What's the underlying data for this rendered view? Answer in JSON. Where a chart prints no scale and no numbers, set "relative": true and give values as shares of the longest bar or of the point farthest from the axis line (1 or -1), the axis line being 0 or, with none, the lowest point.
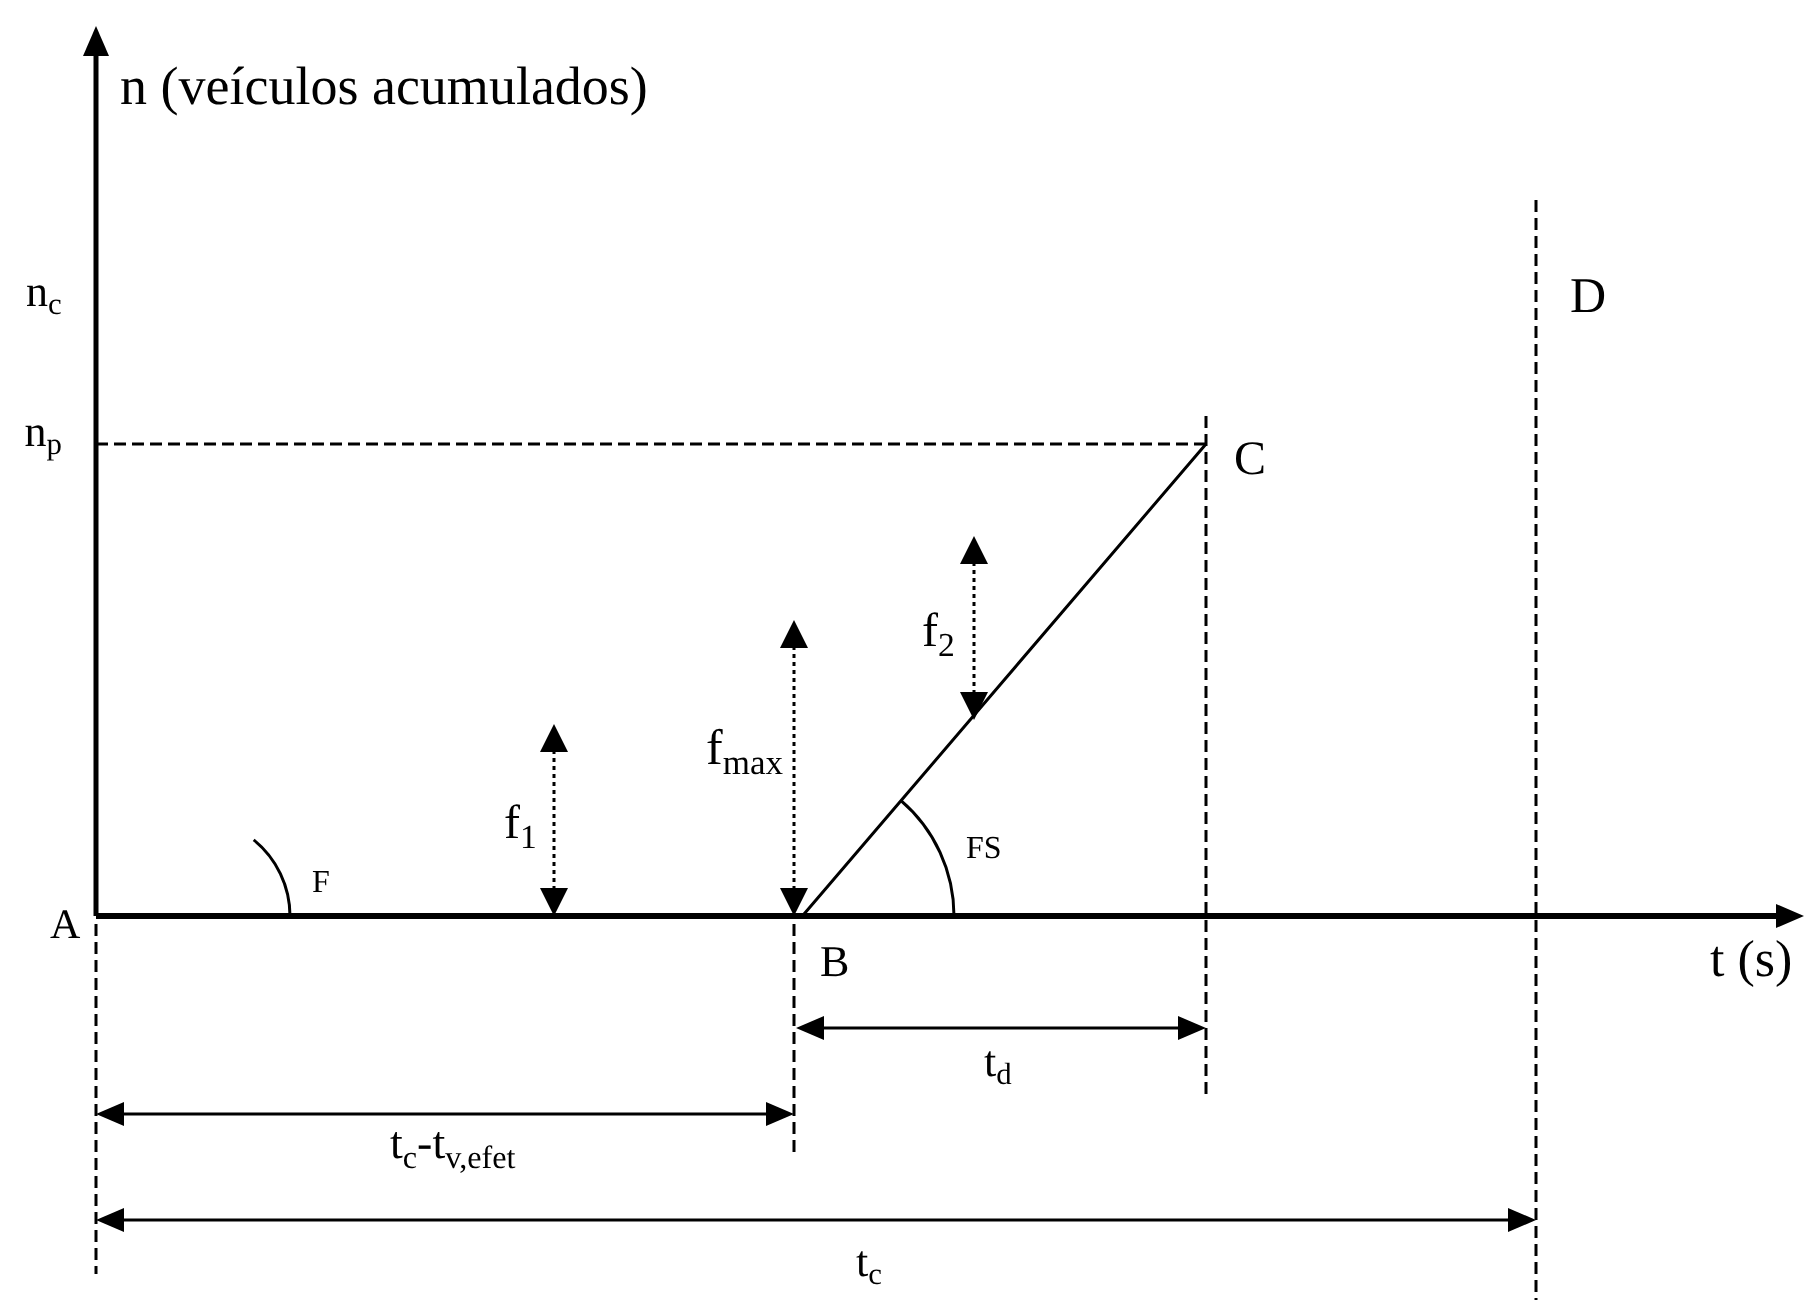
{
  "chart_data": {
    "type": "line",
    "categories": [
      null,
      null,
      null,
      null,
      null,
      null,
      null,
      null,
      null,
      null,
      null,
      null
    ],
    "series": [
      {
        "color": "#000000",
        "values": [
          0,
          0,
          0,
          0,
          0,
          0,
          0,
          0,
          0.25,
          0.5,
          0.75,
          1
        ]
      }
    ],
    "relative": true,
    "ref_lines": [
      {
        "axis": "y",
        "value": 1,
        "label": "n$_{p}$",
        "line_style": "dashed"
      }
    ],
    "annotations": [
      "n (veículos acumulados)",
      "n$_{c}$",
      "D",
      "C",
      "f$_{2}$",
      "f$_{max}$",
      "f$_{1}$",
      "FS",
      "F",
      "A",
      "t (s)",
      "B",
      "t$_{d}$",
      "t$_{c}$-t$_{v,efet}$",
      "t$_{c}$"
    ],
    "legend": false,
    "grid": false,
    "marker": "none"
  }
}
